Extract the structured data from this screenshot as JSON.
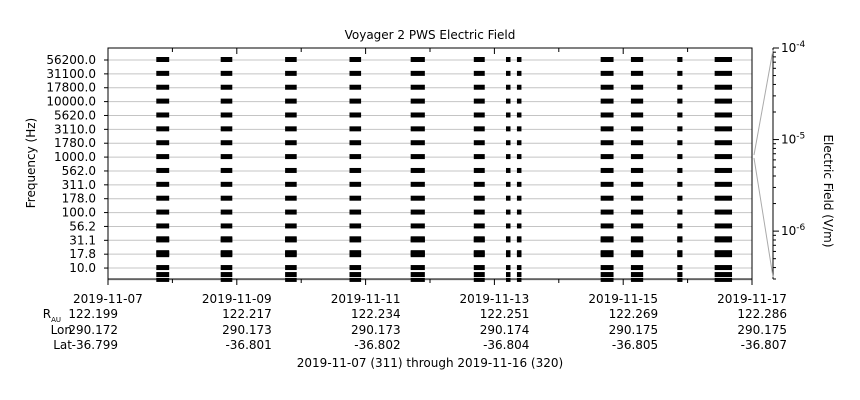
{
  "chart_data": {
    "type": "spectrogram",
    "title": "Voyager 2 PWS Electric Field",
    "ylabel": "Frequency (Hz)",
    "colorbar_label": "Electric Field (V/m)",
    "colorbar_range": [
      3e-07,
      0.0001
    ],
    "colorbar_ticks": [
      {
        "value": 0.0001,
        "base": "10",
        "exp": "-4"
      },
      {
        "value": 1e-05,
        "base": "10",
        "exp": "-5"
      },
      {
        "value": 1e-06,
        "base": "10",
        "exp": "-6"
      }
    ],
    "frequency_labels": [
      "56200.0",
      "31100.0",
      "17800.0",
      "10000.0",
      "5620.0",
      "3110.0",
      "1780.0",
      "1000.0",
      "562.0",
      "311.0",
      "178.0",
      "100.0",
      "56.2",
      "31.1",
      "17.8",
      "10.0"
    ],
    "x_ticks": [
      {
        "date": "2019-11-07",
        "rau": "122.199",
        "lon": "290.172",
        "lat": "-36.799"
      },
      {
        "date": "2019-11-09",
        "rau": "122.217",
        "lon": "290.173",
        "lat": "-36.801"
      },
      {
        "date": "2019-11-11",
        "rau": "122.234",
        "lon": "290.173",
        "lat": "-36.802"
      },
      {
        "date": "2019-11-13",
        "rau": "122.251",
        "lon": "290.174",
        "lat": "-36.804"
      },
      {
        "date": "2019-11-15",
        "rau": "122.269",
        "lon": "290.175",
        "lat": "-36.805"
      },
      {
        "date": "2019-11-17",
        "rau": "122.286",
        "lon": "290.175",
        "lat": "-36.807"
      }
    ],
    "x_range_days": [
      0,
      10
    ],
    "row_labels": {
      "rau_main": "R",
      "rau_sub": "AU",
      "lon": "Lon",
      "lat": "Lat"
    },
    "footer": "2019-11-07 (311) through 2019-11-16 (320)",
    "observation_intervals_days": [
      [
        0.75,
        0.95
      ],
      [
        1.75,
        1.93
      ],
      [
        2.75,
        2.93
      ],
      [
        3.75,
        3.93
      ],
      [
        4.7,
        4.92
      ],
      [
        5.68,
        5.85
      ],
      [
        6.18,
        6.25
      ],
      [
        6.35,
        6.42
      ],
      [
        7.65,
        7.85
      ],
      [
        8.12,
        8.31
      ],
      [
        8.84,
        8.92
      ],
      [
        9.42,
        9.69
      ]
    ]
  }
}
